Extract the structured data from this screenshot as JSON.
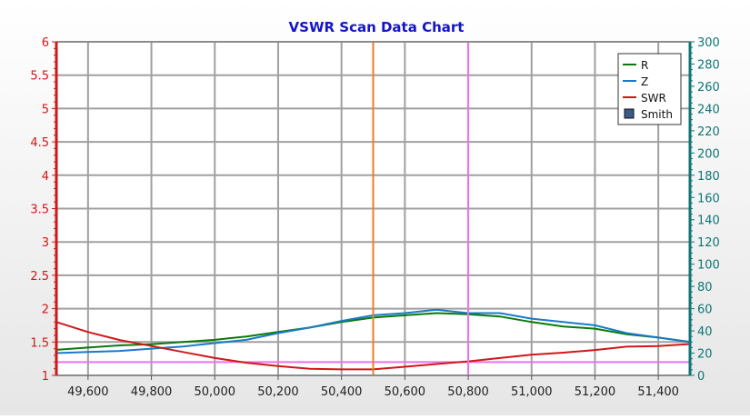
{
  "colors": {
    "background_top": "#ffffff",
    "background_bottom": "#e6e6e6",
    "plot_background": "#ffffff",
    "grid": "#a0a0a0",
    "title": "#1515c8",
    "left_axis": "#d01818",
    "right_axis": "#0f7575",
    "marker_orange": "#e8802a",
    "marker_violet": "#ee70ee",
    "swr_ref_line": "#ee70ee"
  },
  "chart_data": {
    "type": "line",
    "title": "VSWR Scan Data Chart",
    "xlabel": "",
    "ylabel_left": "",
    "ylabel_right": "",
    "xlim": [
      49500,
      51500
    ],
    "ylim_left": [
      1,
      6
    ],
    "ylim_right": [
      0,
      300
    ],
    "x_ticks": [
      49600,
      49800,
      50000,
      50200,
      50400,
      50600,
      50800,
      51000,
      51200,
      51400
    ],
    "x_tick_labels": [
      "49,600",
      "49,800",
      "50,000",
      "50,200",
      "50,400",
      "50,600",
      "50,800",
      "51,000",
      "51,200",
      "51,400"
    ],
    "y_left_ticks": [
      1,
      1.5,
      2,
      2.5,
      3,
      3.5,
      4,
      4.5,
      5,
      5.5,
      6
    ],
    "y_left_tick_labels": [
      "1",
      "1.5",
      "2",
      "2.5",
      "3",
      "3.5",
      "4",
      "4.5",
      "5",
      "5.5",
      "6"
    ],
    "y_right_ticks": [
      0,
      20,
      40,
      60,
      80,
      100,
      120,
      140,
      160,
      180,
      200,
      220,
      240,
      260,
      280,
      300
    ],
    "y_right_tick_labels": [
      "0",
      "20",
      "40",
      "60",
      "80",
      "100",
      "120",
      "140",
      "160",
      "180",
      "200",
      "220",
      "240",
      "260",
      "280",
      "300"
    ],
    "grid": true,
    "legend_position": "top-right",
    "series": [
      {
        "name": "R",
        "axis": "right",
        "color": "#0a7a0a",
        "x": [
          49500,
          49600,
          49700,
          49800,
          49900,
          50000,
          50100,
          50200,
          50300,
          50400,
          50500,
          50600,
          50700,
          50800,
          50900,
          51000,
          51100,
          51200,
          51300,
          51400,
          51500
        ],
        "y": [
          23,
          25,
          27,
          28,
          30,
          32,
          35,
          39,
          43,
          48,
          52,
          54,
          56,
          55,
          53,
          48,
          44,
          42,
          37,
          34,
          30
        ]
      },
      {
        "name": "Z",
        "axis": "right",
        "color": "#1a7ac8",
        "x": [
          49500,
          49600,
          49700,
          49800,
          49900,
          50000,
          50100,
          50200,
          50300,
          50400,
          50500,
          50600,
          50700,
          50800,
          50900,
          51000,
          51100,
          51200,
          51300,
          51400,
          51500
        ],
        "y": [
          20,
          21,
          22,
          24,
          26,
          29,
          32,
          38,
          43,
          49,
          54,
          56,
          59,
          56,
          56,
          51,
          48,
          45,
          38,
          34,
          30
        ]
      },
      {
        "name": "SWR",
        "axis": "left",
        "color": "#d01818",
        "x": [
          49500,
          49600,
          49700,
          49800,
          49900,
          50000,
          50100,
          50200,
          50300,
          50400,
          50500,
          50600,
          50700,
          50800,
          50900,
          51000,
          51100,
          51200,
          51300,
          51400,
          51500
        ],
        "y": [
          1.8,
          1.65,
          1.53,
          1.44,
          1.35,
          1.26,
          1.19,
          1.14,
          1.1,
          1.09,
          1.09,
          1.13,
          1.17,
          1.21,
          1.26,
          1.31,
          1.34,
          1.38,
          1.43,
          1.44,
          1.47
        ]
      }
    ],
    "legend_entries": [
      {
        "label": "R",
        "kind": "line",
        "color": "#0a7a0a"
      },
      {
        "label": "Z",
        "kind": "line",
        "color": "#1a7ac8"
      },
      {
        "label": "SWR",
        "kind": "line",
        "color": "#d01818"
      },
      {
        "label": "Smith",
        "kind": "box",
        "color": "#3a5a8a"
      }
    ],
    "marker_lines": [
      {
        "x": 50500,
        "color": "#e8802a"
      },
      {
        "x": 50800,
        "color": "#ee70ee"
      }
    ],
    "reference_lines": [
      {
        "axis": "left",
        "y": 1.2,
        "color": "#ee70ee"
      }
    ]
  }
}
